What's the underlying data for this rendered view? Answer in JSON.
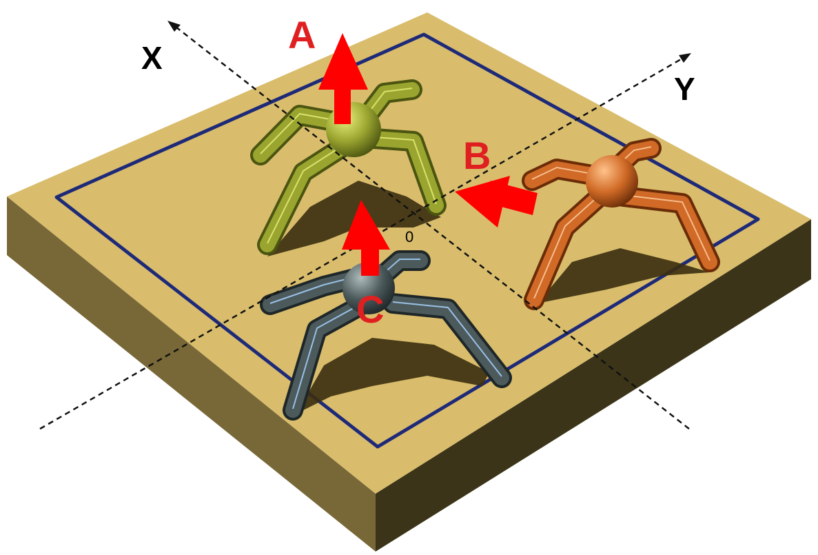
{
  "labels": {
    "x_axis": "X",
    "y_axis": "Y",
    "origin": "0",
    "agent_a": "A",
    "agent_b": "B",
    "agent_c": "C"
  },
  "colors": {
    "platform_top": "#d9bd6c",
    "platform_left": "#786838",
    "platform_front": "#3b3418",
    "boundary": "#1e2a78",
    "agent_a": "#9aa530",
    "agent_b": "#d06a26",
    "agent_c": "#4c5a5c",
    "arrow": "#ff0000",
    "label": "#e02020"
  },
  "icons": [
    "spider-robot-icon",
    "arrow-icon"
  ]
}
